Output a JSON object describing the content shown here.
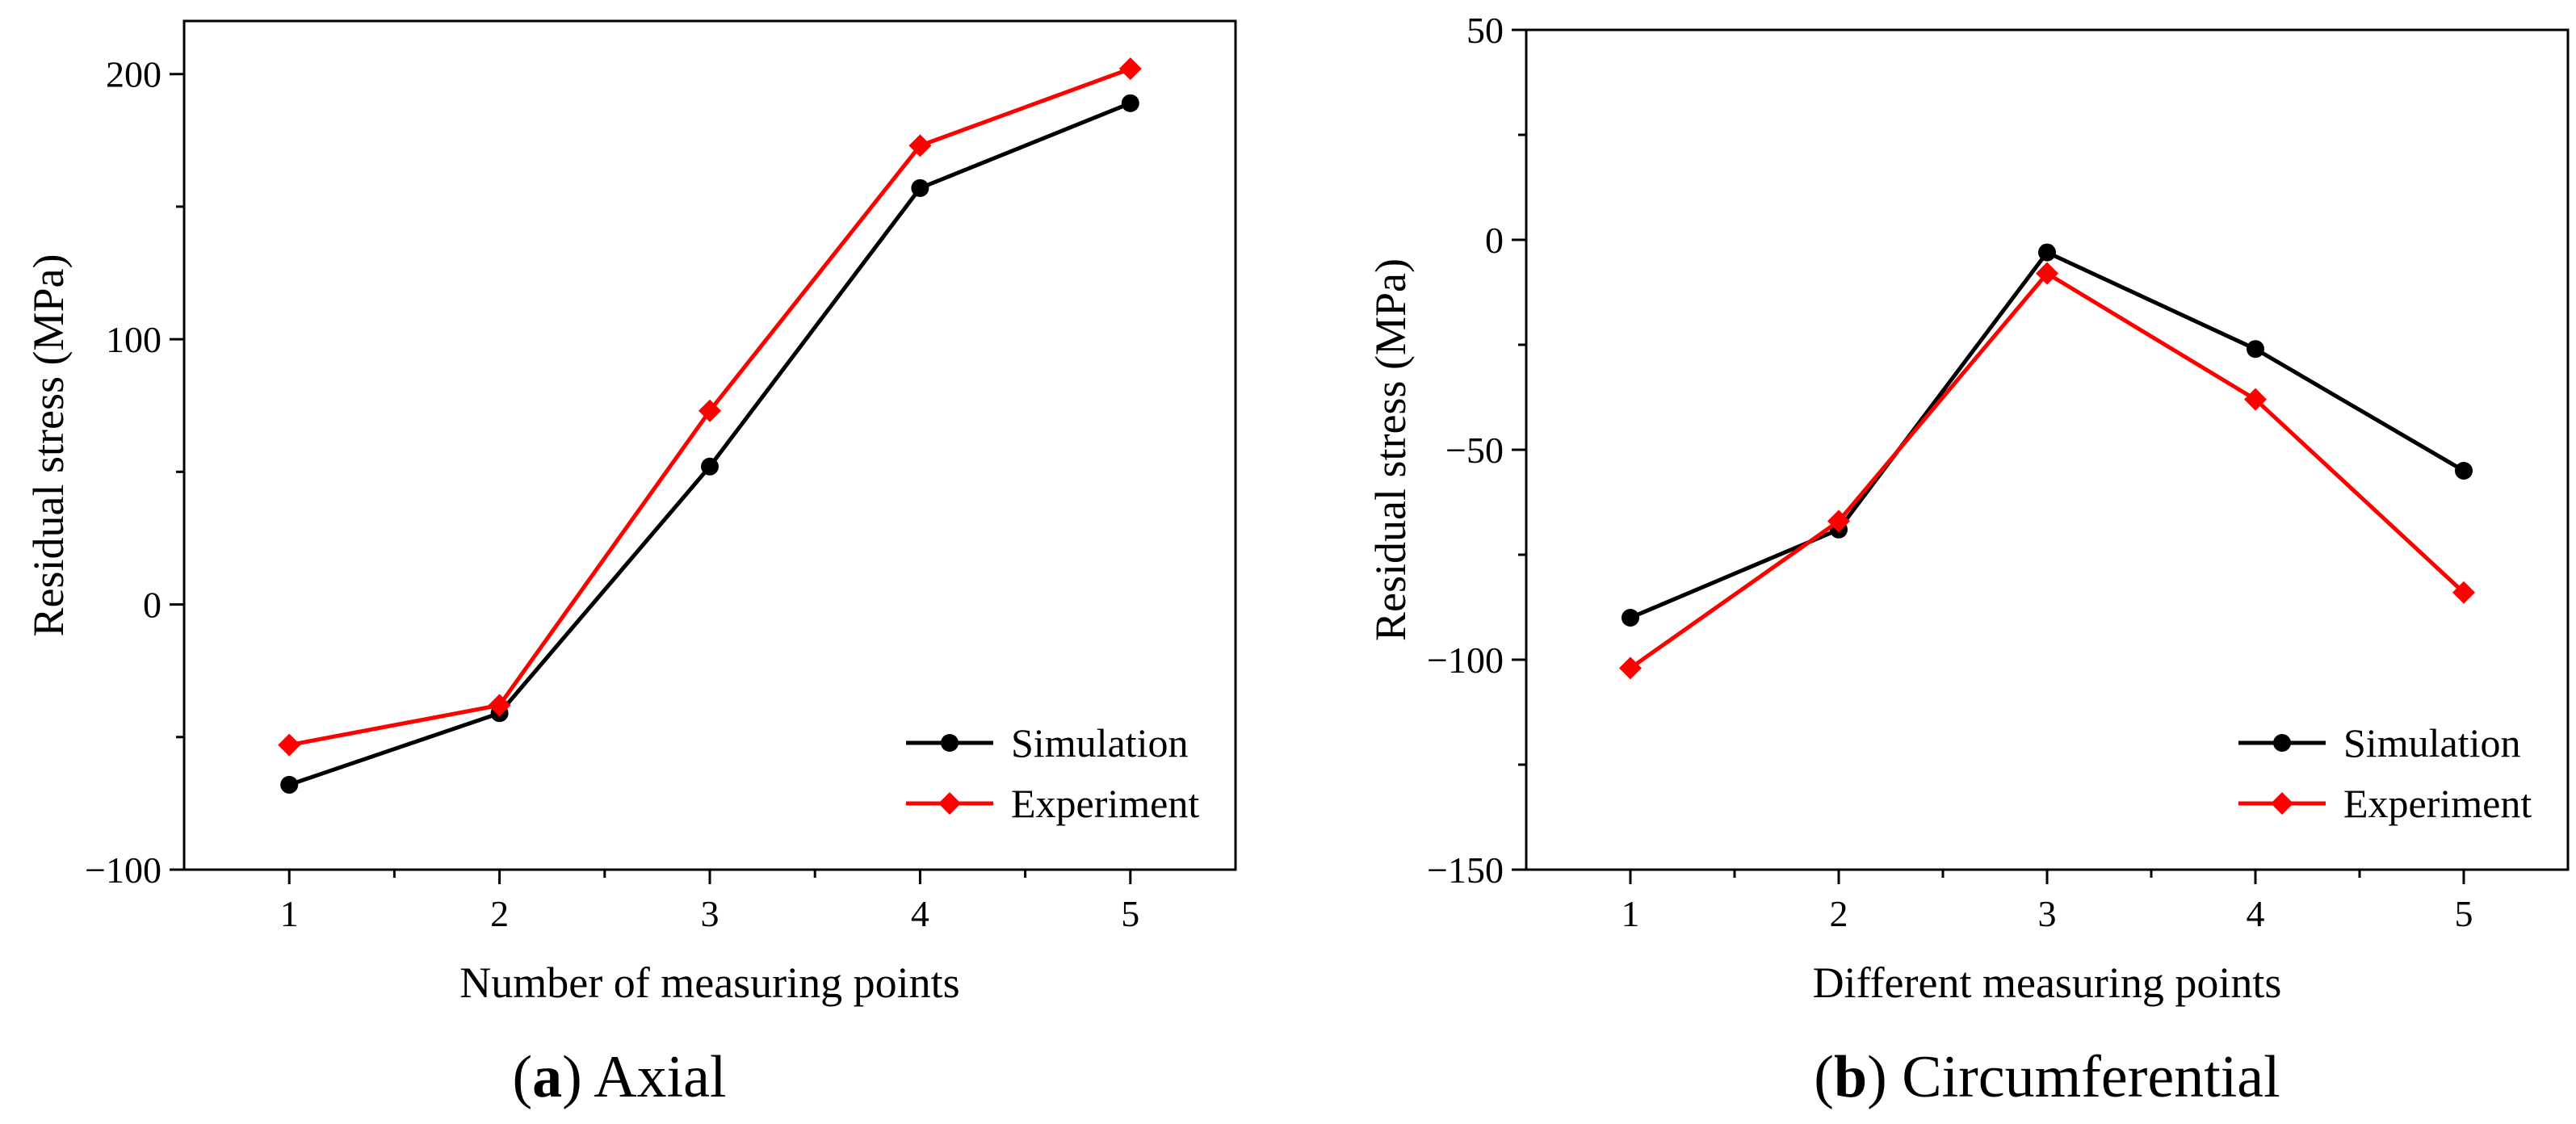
{
  "chart_data": [
    {
      "type": "line",
      "panel": "a",
      "caption_letter": "a",
      "caption_text": "Axial",
      "xlabel": "Number of measuring points",
      "ylabel": "Residual stress (MPa)",
      "x": [
        1,
        2,
        3,
        4,
        5
      ],
      "xticks": [
        "1",
        "2",
        "3",
        "4",
        "5"
      ],
      "xlim": [
        0.5,
        5.5
      ],
      "ylim": [
        -100,
        220
      ],
      "yticks": [
        -100,
        0,
        100,
        200
      ],
      "ytick_labels": [
        "−100",
        "0",
        "100",
        "200"
      ],
      "series": [
        {
          "name": "Simulation",
          "color": "#000000",
          "marker": "circle",
          "values": [
            -68,
            -41,
            52,
            157,
            189
          ]
        },
        {
          "name": "Experiment",
          "color": "#ff0000",
          "marker": "diamond",
          "values": [
            -53,
            -38,
            73,
            173,
            202
          ]
        }
      ],
      "legend_position": "bottom-right"
    },
    {
      "type": "line",
      "panel": "b",
      "caption_letter": "b",
      "caption_text": "Circumferential",
      "xlabel": "Different measuring points",
      "ylabel": "Residual stress (MPa)",
      "x": [
        1,
        2,
        3,
        4,
        5
      ],
      "xticks": [
        "1",
        "2",
        "3",
        "4",
        "5"
      ],
      "xlim": [
        0.5,
        5.5
      ],
      "ylim": [
        -150,
        50
      ],
      "yticks": [
        -150,
        -100,
        -50,
        0,
        50
      ],
      "ytick_labels": [
        "−150",
        "−100",
        "−50",
        "0",
        "50"
      ],
      "series": [
        {
          "name": "Simulation",
          "color": "#000000",
          "marker": "circle",
          "values": [
            -90,
            -69,
            -3,
            -26,
            -55
          ]
        },
        {
          "name": "Experiment",
          "color": "#ff0000",
          "marker": "diamond",
          "values": [
            -102,
            -67,
            -8,
            -38,
            -84
          ]
        }
      ],
      "legend_position": "bottom-right"
    }
  ]
}
